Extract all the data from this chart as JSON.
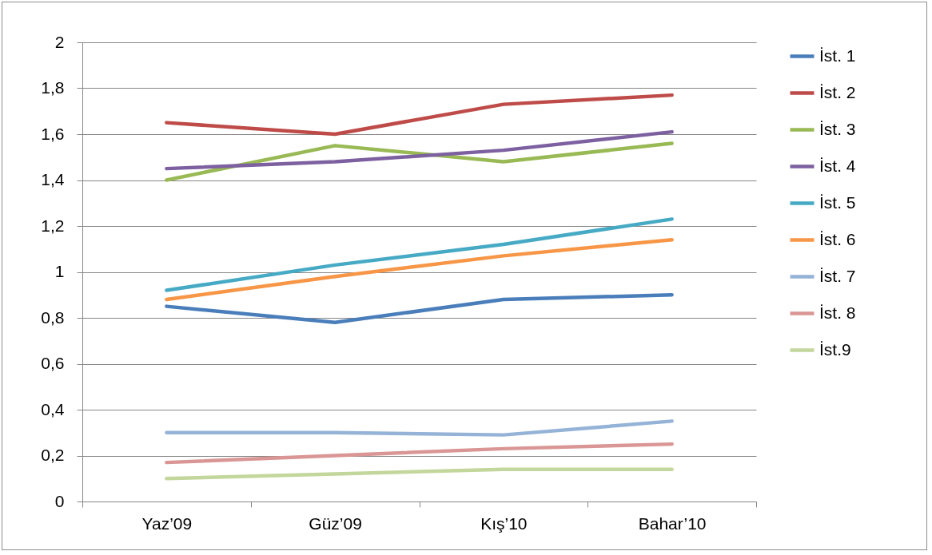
{
  "chart_data": {
    "type": "line",
    "categories": [
      "Yaz’09",
      "Güz’09",
      "Kış’10",
      "Bahar’10"
    ],
    "series": [
      {
        "name": "İst. 1",
        "color": "#4a7ebb",
        "values": [
          0.85,
          0.78,
          0.88,
          0.9
        ]
      },
      {
        "name": "İst. 2",
        "color": "#be4b48",
        "values": [
          1.65,
          1.6,
          1.73,
          1.77
        ]
      },
      {
        "name": "İst. 3",
        "color": "#98b954",
        "values": [
          1.4,
          1.55,
          1.48,
          1.56
        ]
      },
      {
        "name": "İst. 4",
        "color": "#7d60a0",
        "values": [
          1.45,
          1.48,
          1.53,
          1.61
        ]
      },
      {
        "name": "İst. 5",
        "color": "#46aac5",
        "values": [
          0.92,
          1.03,
          1.12,
          1.23
        ]
      },
      {
        "name": "İst. 6",
        "color": "#f79646",
        "values": [
          0.88,
          0.98,
          1.07,
          1.14
        ]
      },
      {
        "name": "İst. 7",
        "color": "#95b3d7",
        "values": [
          0.3,
          0.3,
          0.29,
          0.35
        ]
      },
      {
        "name": "İst. 8",
        "color": "#d99694",
        "values": [
          0.17,
          0.2,
          0.23,
          0.25
        ]
      },
      {
        "name": "İst.9",
        "color": "#c3d69b",
        "values": [
          0.1,
          0.12,
          0.14,
          0.14
        ]
      }
    ],
    "ylim": [
      0,
      2
    ],
    "yticks": [
      0,
      {
        "value": 0.2,
        "label": "0,2"
      },
      {
        "value": 0.4,
        "label": "0,4"
      },
      {
        "value": 0.6,
        "label": "0,6"
      },
      {
        "value": 0.8,
        "label": "0,8"
      },
      1,
      {
        "value": 1.2,
        "label": "1,2"
      },
      {
        "value": 1.4,
        "label": "1,4"
      },
      {
        "value": 1.6,
        "label": "1,6"
      },
      {
        "value": 1.8,
        "label": "1,8"
      },
      2
    ],
    "grid": "y",
    "legend": "right",
    "marker": "none",
    "line_style": "solid"
  }
}
